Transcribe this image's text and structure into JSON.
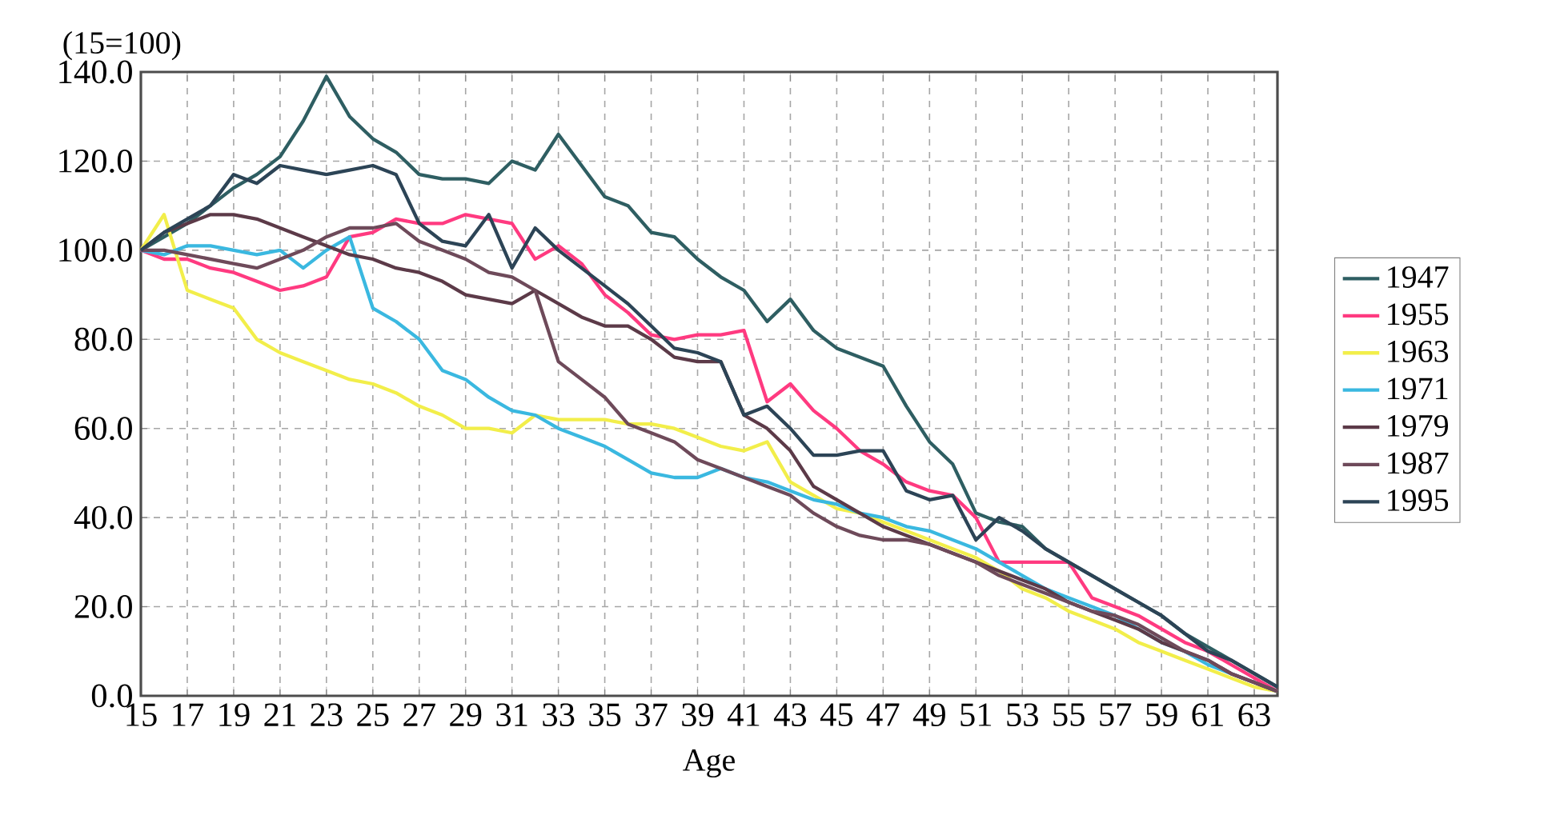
{
  "chart_data": {
    "type": "line",
    "ylabel": "(15=100)",
    "xlabel": "Age",
    "categories": [
      "15",
      null,
      "17",
      null,
      "19",
      null,
      "21",
      null,
      "23",
      null,
      "25",
      null,
      "27",
      null,
      "29",
      null,
      "31",
      null,
      "33",
      null,
      "35",
      null,
      "37",
      null,
      "39",
      null,
      "41",
      null,
      "43",
      null,
      "45",
      null,
      "47",
      null,
      "49",
      null,
      "51",
      null,
      "53",
      null,
      "55",
      null,
      "57",
      null,
      "59",
      null,
      "61",
      null,
      "63",
      null
    ],
    "ylim": [
      0,
      140
    ],
    "yticks": [
      {
        "value": 0,
        "label": "0.0"
      },
      {
        "value": 20,
        "label": "20.0"
      },
      {
        "value": 40,
        "label": "40.0"
      },
      {
        "value": 60,
        "label": "60.0"
      },
      {
        "value": 80,
        "label": "80.0"
      },
      {
        "value": 100,
        "label": "100.0"
      },
      {
        "value": 120,
        "label": "120.0"
      },
      {
        "value": 140,
        "label": "140.0"
      }
    ],
    "grid": true,
    "legend": "right",
    "series": [
      {
        "name": "1947",
        "color": "#2e5e62",
        "values": [
          100,
          103,
          106,
          110,
          114,
          117,
          121,
          129,
          139,
          130,
          125,
          122,
          117,
          116,
          116,
          115,
          120,
          118,
          126,
          119,
          112,
          110,
          104,
          103,
          98,
          94,
          91,
          84,
          89,
          82,
          78,
          76,
          74,
          65,
          57,
          52,
          41,
          39,
          38,
          33,
          30,
          27,
          24,
          21,
          18,
          14,
          11,
          8,
          5,
          2
        ]
      },
      {
        "name": "1955",
        "color": "#ff3a80",
        "values": [
          100,
          98,
          98,
          96,
          95,
          93,
          91,
          92,
          94,
          103,
          104,
          107,
          106,
          106,
          108,
          107,
          106,
          98,
          101,
          97,
          90,
          86,
          81,
          80,
          81,
          81,
          82,
          66,
          70,
          64,
          60,
          55,
          52,
          48,
          46,
          45,
          40,
          30,
          30,
          30,
          30,
          22,
          20,
          18,
          15,
          12,
          10,
          7,
          4,
          1
        ]
      },
      {
        "name": "1963",
        "color": "#f2ee4a",
        "values": [
          100,
          108,
          91,
          89,
          87,
          80,
          77,
          75,
          73,
          71,
          70,
          68,
          65,
          63,
          60,
          60,
          59,
          63,
          62,
          62,
          62,
          61,
          61,
          60,
          58,
          56,
          55,
          57,
          48,
          45,
          42,
          41,
          39,
          37,
          35,
          33,
          31,
          28,
          24,
          22,
          19,
          17,
          15,
          12,
          10,
          8,
          6,
          4,
          2,
          1
        ]
      },
      {
        "name": "1971",
        "color": "#3ab8e0",
        "values": [
          100,
          99,
          101,
          101,
          100,
          99,
          100,
          96,
          100,
          103,
          87,
          84,
          80,
          73,
          71,
          67,
          64,
          63,
          60,
          58,
          56,
          53,
          50,
          49,
          49,
          51,
          49,
          48,
          46,
          44,
          43,
          41,
          40,
          38,
          37,
          35,
          33,
          30,
          27,
          24,
          22,
          20,
          18,
          15,
          12,
          10,
          7,
          5,
          3,
          1
        ]
      },
      {
        "name": "1979",
        "color": "#5c3a48",
        "values": [
          100,
          104,
          106,
          108,
          108,
          107,
          105,
          103,
          101,
          99,
          98,
          96,
          95,
          93,
          90,
          89,
          88,
          91,
          88,
          85,
          83,
          83,
          80,
          76,
          75,
          75,
          63,
          60,
          55,
          47,
          44,
          41,
          38,
          36,
          34,
          32,
          30,
          28,
          26,
          24,
          21,
          19,
          17,
          15,
          12,
          10,
          8,
          5,
          3,
          1
        ]
      },
      {
        "name": "1987",
        "color": "#6e4a5a",
        "values": [
          100,
          100,
          99,
          98,
          97,
          96,
          98,
          100,
          103,
          105,
          105,
          106,
          102,
          100,
          98,
          95,
          94,
          91,
          75,
          71,
          67,
          61,
          59,
          57,
          53,
          51,
          49,
          47,
          45,
          41,
          38,
          36,
          35,
          35,
          34,
          32,
          30,
          27,
          25,
          23,
          21,
          19,
          18,
          16,
          13,
          10,
          8,
          5,
          3,
          1
        ]
      },
      {
        "name": "1995",
        "color": "#2c4456",
        "values": [
          100,
          104,
          107,
          110,
          117,
          115,
          119,
          118,
          117,
          118,
          119,
          117,
          106,
          102,
          101,
          108,
          96,
          105,
          100,
          96,
          92,
          88,
          83,
          78,
          77,
          75,
          63,
          65,
          60,
          54,
          54,
          55,
          55,
          46,
          44,
          45,
          35,
          40,
          37,
          33,
          30,
          27,
          24,
          21,
          18,
          14,
          10,
          8,
          5,
          2
        ]
      }
    ]
  }
}
